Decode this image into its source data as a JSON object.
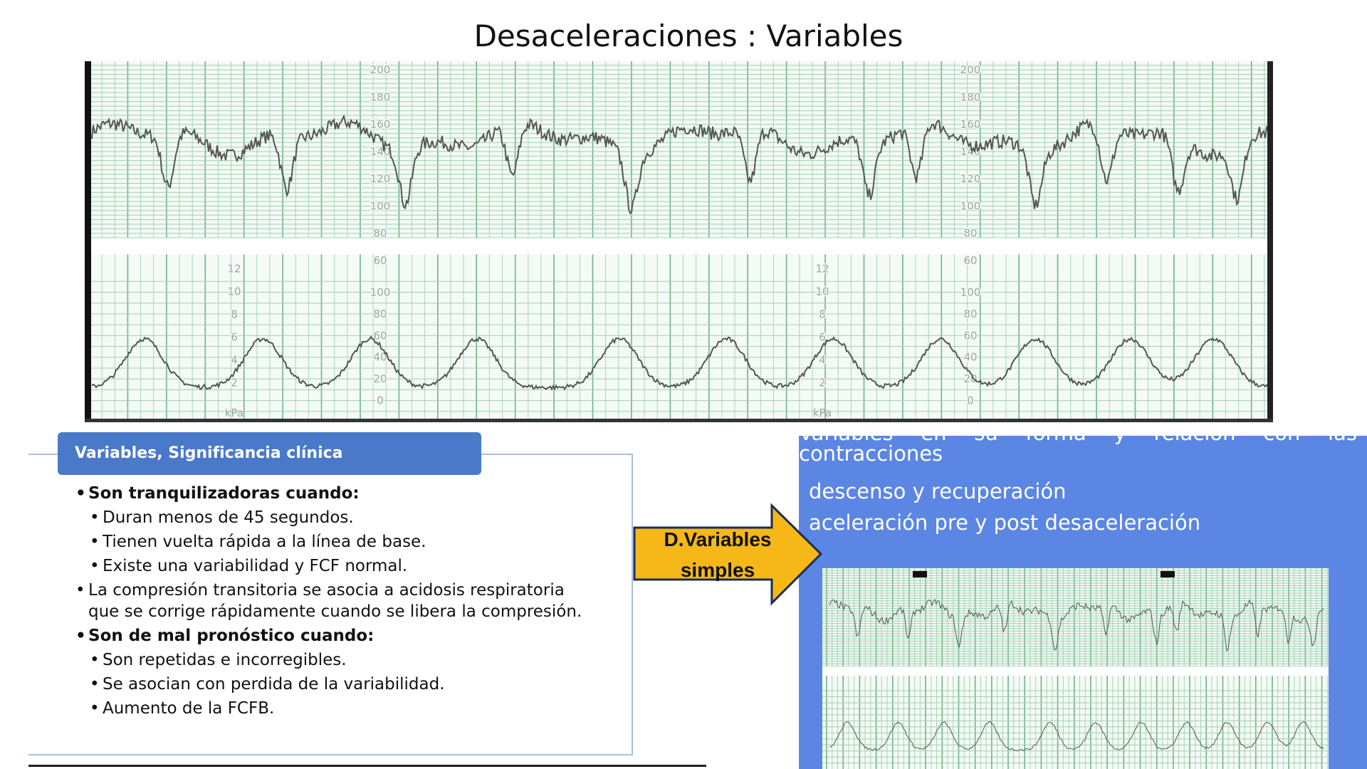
{
  "title": "Desaceleraciones : Variables",
  "ctg": {
    "fhr_scale": [
      200,
      180,
      160,
      140,
      120,
      100,
      80,
      60
    ],
    "uc_scale": [
      100,
      80,
      60,
      40,
      20,
      0
    ],
    "kpa_scale": [
      12,
      10,
      8,
      6,
      4,
      2
    ],
    "kpa_unit": "kPa"
  },
  "panel": {
    "header": "Variables, Significancia clínica",
    "items": [
      {
        "text": "Son tranquilizadoras cuando:",
        "bold": true,
        "level": 1
      },
      {
        "text": "Duran menos de 45 segundos.",
        "bold": false,
        "level": 2
      },
      {
        "text": "Tienen vuelta rápida a la línea de base.",
        "bold": false,
        "level": 2
      },
      {
        "text": "Existe una variabilidad y FCF normal.",
        "bold": false,
        "level": 2
      },
      {
        "text": "La compresión transitoria se asocia a acidosis respiratoria que se corrige rápidamente cuando se libera la compresión.",
        "bold": false,
        "level": 1
      },
      {
        "text": "Son de mal pronóstico cuando:",
        "bold": true,
        "level": 1
      },
      {
        "text": "Son repetidas e incorregibles.",
        "bold": false,
        "level": 2
      },
      {
        "text": "Se asocian con perdida de la variabilidad.",
        "bold": false,
        "level": 2
      },
      {
        "text": "Aumento de la FCFB.",
        "bold": false,
        "level": 2
      }
    ]
  },
  "arrow": {
    "label": "D.Variables simples"
  },
  "right_panel": {
    "lines": [
      "Variables en su forma y relación con las contracciones",
      "descenso y recuperación",
      "aceleración pre y post desaceleración"
    ]
  }
}
